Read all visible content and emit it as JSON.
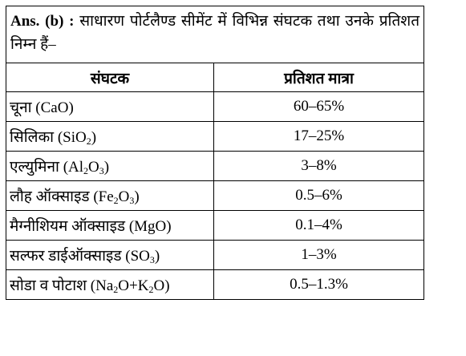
{
  "answer": {
    "label": "Ans. (b) :",
    "text": "साधारण पोर्टलैण्ड सीमेंट में विभिन्न संघटक तथा उनके प्रतिशत निम्न हैं–"
  },
  "table": {
    "headers": [
      "संघटक",
      "प्रतिशत मात्रा"
    ],
    "rows": [
      {
        "name": "चूना",
        "formula": [
          {
            "t": "CaO"
          }
        ],
        "value": "60–65%"
      },
      {
        "name": "सिलिका",
        "formula": [
          {
            "t": "SiO"
          },
          {
            "sub": "2"
          }
        ],
        "value": "17–25%"
      },
      {
        "name": "एल्युमिना",
        "formula": [
          {
            "t": "Al"
          },
          {
            "sub": "2"
          },
          {
            "t": "O"
          },
          {
            "sub": "3"
          }
        ],
        "value": "3–8%"
      },
      {
        "name": "लौह ऑक्साइड",
        "formula": [
          {
            "t": "Fe"
          },
          {
            "sub": "2"
          },
          {
            "t": "O"
          },
          {
            "sub": "3"
          }
        ],
        "value": "0.5–6%"
      },
      {
        "name": "मैग्नीशियम ऑक्साइड",
        "formula": [
          {
            "t": "MgO"
          }
        ],
        "value": "0.1–4%"
      },
      {
        "name": "सल्फर डाईऑक्साइड",
        "formula": [
          {
            "t": "SO"
          },
          {
            "sub": "3"
          }
        ],
        "value": "1–3%"
      },
      {
        "name": "सोडा व पोटाश",
        "formula": [
          {
            "t": "Na"
          },
          {
            "sub": "2"
          },
          {
            "t": "O+K"
          },
          {
            "sub": "2"
          },
          {
            "t": "O"
          }
        ],
        "value": "0.5–1.3%"
      }
    ]
  }
}
